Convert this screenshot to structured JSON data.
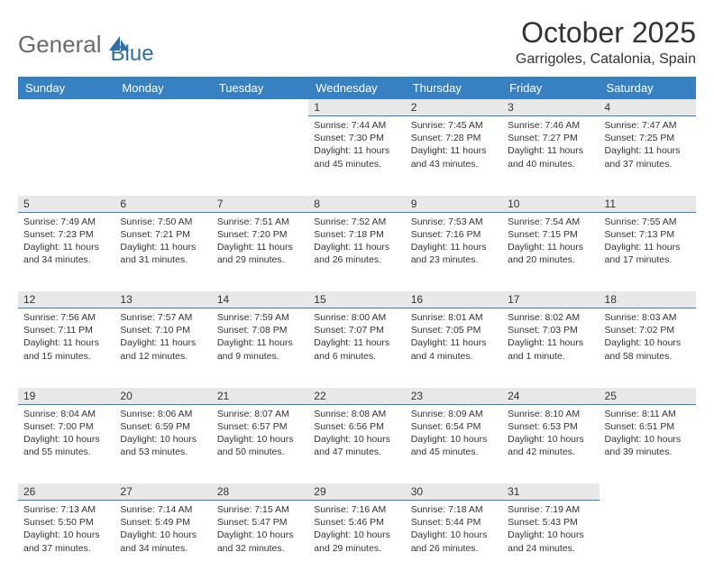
{
  "logo": {
    "text_gray": "General",
    "text_blue": "Blue",
    "icon_color": "#2f6fa8"
  },
  "header": {
    "month_title": "October 2025",
    "location": "Garrigoles, Catalonia, Spain"
  },
  "colors": {
    "header_bg": "#3781c2",
    "header_text": "#ffffff",
    "daynum_bg": "#e8e8e8",
    "daynum_border": "#3781c2",
    "body_text": "#333333",
    "logo_gray": "#6b6b6b",
    "logo_blue": "#2f6fa8"
  },
  "weekdays": [
    "Sunday",
    "Monday",
    "Tuesday",
    "Wednesday",
    "Thursday",
    "Friday",
    "Saturday"
  ],
  "weeks": [
    [
      null,
      null,
      null,
      {
        "num": "1",
        "sunrise": "7:44 AM",
        "sunset": "7:30 PM",
        "daylight": "11 hours and 45 minutes."
      },
      {
        "num": "2",
        "sunrise": "7:45 AM",
        "sunset": "7:28 PM",
        "daylight": "11 hours and 43 minutes."
      },
      {
        "num": "3",
        "sunrise": "7:46 AM",
        "sunset": "7:27 PM",
        "daylight": "11 hours and 40 minutes."
      },
      {
        "num": "4",
        "sunrise": "7:47 AM",
        "sunset": "7:25 PM",
        "daylight": "11 hours and 37 minutes."
      }
    ],
    [
      {
        "num": "5",
        "sunrise": "7:49 AM",
        "sunset": "7:23 PM",
        "daylight": "11 hours and 34 minutes."
      },
      {
        "num": "6",
        "sunrise": "7:50 AM",
        "sunset": "7:21 PM",
        "daylight": "11 hours and 31 minutes."
      },
      {
        "num": "7",
        "sunrise": "7:51 AM",
        "sunset": "7:20 PM",
        "daylight": "11 hours and 29 minutes."
      },
      {
        "num": "8",
        "sunrise": "7:52 AM",
        "sunset": "7:18 PM",
        "daylight": "11 hours and 26 minutes."
      },
      {
        "num": "9",
        "sunrise": "7:53 AM",
        "sunset": "7:16 PM",
        "daylight": "11 hours and 23 minutes."
      },
      {
        "num": "10",
        "sunrise": "7:54 AM",
        "sunset": "7:15 PM",
        "daylight": "11 hours and 20 minutes."
      },
      {
        "num": "11",
        "sunrise": "7:55 AM",
        "sunset": "7:13 PM",
        "daylight": "11 hours and 17 minutes."
      }
    ],
    [
      {
        "num": "12",
        "sunrise": "7:56 AM",
        "sunset": "7:11 PM",
        "daylight": "11 hours and 15 minutes."
      },
      {
        "num": "13",
        "sunrise": "7:57 AM",
        "sunset": "7:10 PM",
        "daylight": "11 hours and 12 minutes."
      },
      {
        "num": "14",
        "sunrise": "7:59 AM",
        "sunset": "7:08 PM",
        "daylight": "11 hours and 9 minutes."
      },
      {
        "num": "15",
        "sunrise": "8:00 AM",
        "sunset": "7:07 PM",
        "daylight": "11 hours and 6 minutes."
      },
      {
        "num": "16",
        "sunrise": "8:01 AM",
        "sunset": "7:05 PM",
        "daylight": "11 hours and 4 minutes."
      },
      {
        "num": "17",
        "sunrise": "8:02 AM",
        "sunset": "7:03 PM",
        "daylight": "11 hours and 1 minute."
      },
      {
        "num": "18",
        "sunrise": "8:03 AM",
        "sunset": "7:02 PM",
        "daylight": "10 hours and 58 minutes."
      }
    ],
    [
      {
        "num": "19",
        "sunrise": "8:04 AM",
        "sunset": "7:00 PM",
        "daylight": "10 hours and 55 minutes."
      },
      {
        "num": "20",
        "sunrise": "8:06 AM",
        "sunset": "6:59 PM",
        "daylight": "10 hours and 53 minutes."
      },
      {
        "num": "21",
        "sunrise": "8:07 AM",
        "sunset": "6:57 PM",
        "daylight": "10 hours and 50 minutes."
      },
      {
        "num": "22",
        "sunrise": "8:08 AM",
        "sunset": "6:56 PM",
        "daylight": "10 hours and 47 minutes."
      },
      {
        "num": "23",
        "sunrise": "8:09 AM",
        "sunset": "6:54 PM",
        "daylight": "10 hours and 45 minutes."
      },
      {
        "num": "24",
        "sunrise": "8:10 AM",
        "sunset": "6:53 PM",
        "daylight": "10 hours and 42 minutes."
      },
      {
        "num": "25",
        "sunrise": "8:11 AM",
        "sunset": "6:51 PM",
        "daylight": "10 hours and 39 minutes."
      }
    ],
    [
      {
        "num": "26",
        "sunrise": "7:13 AM",
        "sunset": "5:50 PM",
        "daylight": "10 hours and 37 minutes."
      },
      {
        "num": "27",
        "sunrise": "7:14 AM",
        "sunset": "5:49 PM",
        "daylight": "10 hours and 34 minutes."
      },
      {
        "num": "28",
        "sunrise": "7:15 AM",
        "sunset": "5:47 PM",
        "daylight": "10 hours and 32 minutes."
      },
      {
        "num": "29",
        "sunrise": "7:16 AM",
        "sunset": "5:46 PM",
        "daylight": "10 hours and 29 minutes."
      },
      {
        "num": "30",
        "sunrise": "7:18 AM",
        "sunset": "5:44 PM",
        "daylight": "10 hours and 26 minutes."
      },
      {
        "num": "31",
        "sunrise": "7:19 AM",
        "sunset": "5:43 PM",
        "daylight": "10 hours and 24 minutes."
      },
      null
    ]
  ],
  "labels": {
    "sunrise_prefix": "Sunrise: ",
    "sunset_prefix": "Sunset: ",
    "daylight_prefix": "Daylight: "
  }
}
